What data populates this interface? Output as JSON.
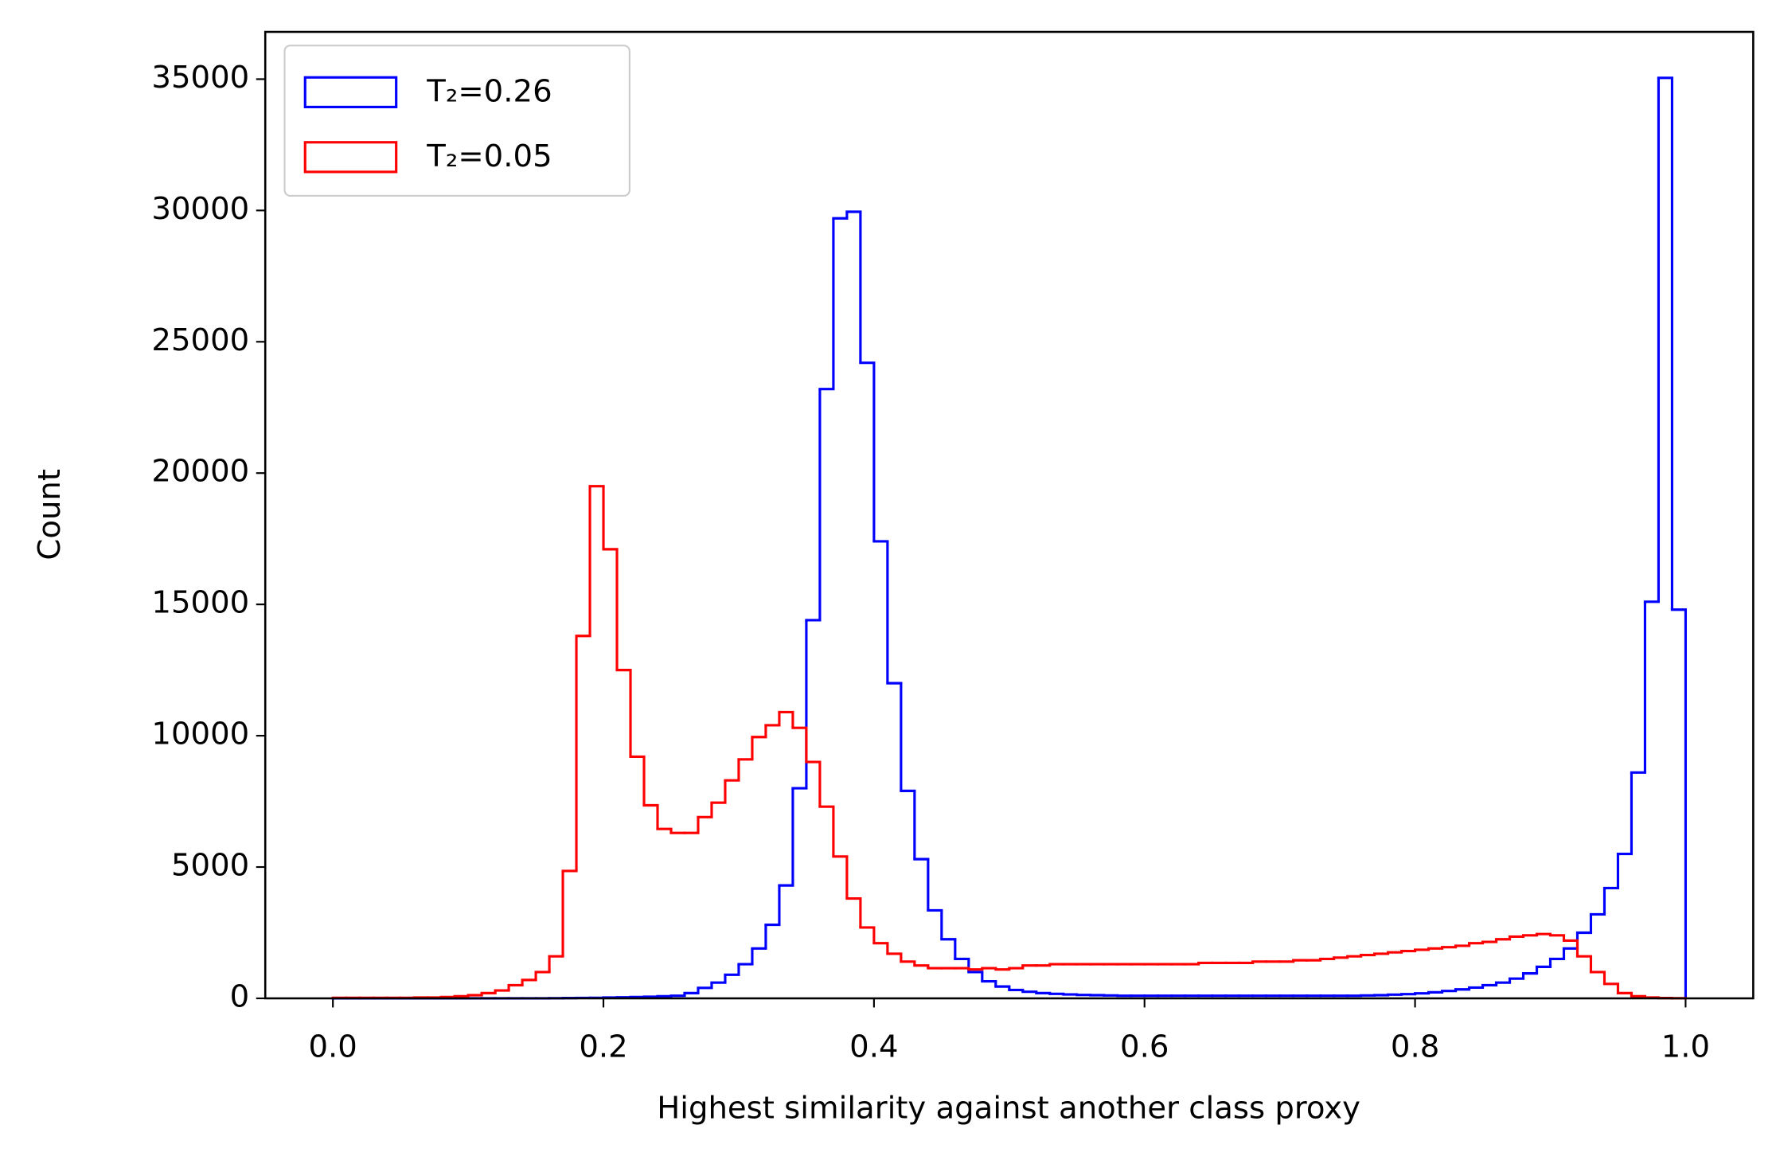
{
  "chart_data": {
    "type": "histogram",
    "histtype": "step",
    "xlabel": "Highest similarity against another class proxy",
    "ylabel": "Count",
    "bins": [
      0,
      0.01,
      0.02,
      0.03,
      0.04,
      0.05,
      0.06,
      0.07,
      0.08,
      0.09,
      0.1,
      0.11,
      0.12,
      0.13,
      0.14,
      0.15,
      0.16,
      0.17,
      0.18,
      0.19,
      0.2,
      0.21,
      0.22,
      0.23,
      0.24,
      0.25,
      0.26,
      0.27,
      0.28,
      0.29,
      0.3,
      0.31,
      0.32,
      0.33,
      0.34,
      0.35,
      0.36,
      0.37,
      0.38,
      0.39,
      0.4,
      0.41,
      0.42,
      0.43,
      0.44,
      0.45,
      0.46,
      0.47,
      0.48,
      0.49,
      0.5,
      0.51,
      0.52,
      0.53,
      0.54,
      0.55,
      0.56,
      0.57,
      0.58,
      0.59,
      0.6,
      0.61,
      0.62,
      0.63,
      0.64,
      0.65,
      0.66,
      0.67,
      0.68,
      0.69,
      0.7,
      0.71,
      0.72,
      0.73,
      0.74,
      0.75,
      0.76,
      0.77,
      0.78,
      0.79,
      0.8,
      0.81,
      0.82,
      0.83,
      0.84,
      0.85,
      0.86,
      0.87,
      0.88,
      0.89,
      0.9,
      0.91,
      0.92,
      0.93,
      0.94,
      0.95,
      0.96,
      0.97,
      0.98,
      0.99,
      1
    ],
    "series": [
      {
        "name": "T₂=0.26",
        "color": "#0000ff",
        "values": [
          0,
          0,
          0,
          0,
          0,
          0,
          0,
          0,
          0,
          0,
          0,
          0,
          0,
          0,
          0,
          0,
          5,
          10,
          15,
          20,
          30,
          40,
          50,
          60,
          80,
          100,
          200,
          400,
          600,
          900,
          1300,
          1900,
          2800,
          4300,
          8000,
          14400,
          23200,
          29700,
          29950,
          24200,
          17400,
          12000,
          7900,
          5300,
          3350,
          2250,
          1500,
          1000,
          650,
          450,
          320,
          250,
          200,
          170,
          150,
          130,
          120,
          110,
          100,
          100,
          100,
          100,
          100,
          100,
          100,
          100,
          100,
          100,
          100,
          100,
          100,
          100,
          100,
          100,
          100,
          100,
          110,
          120,
          140,
          160,
          190,
          230,
          280,
          340,
          410,
          500,
          600,
          750,
          950,
          1200,
          1500,
          1900,
          2500,
          3200,
          4200,
          5500,
          8600,
          15100,
          35050,
          14800
        ]
      },
      {
        "name": "T₂=0.05",
        "color": "#ff0000",
        "values": [
          20,
          20,
          20,
          20,
          20,
          20,
          30,
          30,
          50,
          80,
          120,
          200,
          300,
          500,
          700,
          1000,
          1600,
          4850,
          13800,
          19500,
          17100,
          12500,
          9200,
          7350,
          6450,
          6300,
          6300,
          6900,
          7450,
          8300,
          9100,
          9950,
          10400,
          10900,
          10300,
          9000,
          7300,
          5400,
          3800,
          2700,
          2100,
          1700,
          1400,
          1250,
          1150,
          1150,
          1150,
          1100,
          1150,
          1100,
          1150,
          1250,
          1250,
          1300,
          1300,
          1300,
          1300,
          1300,
          1300,
          1300,
          1300,
          1300,
          1300,
          1300,
          1350,
          1350,
          1350,
          1350,
          1400,
          1400,
          1400,
          1450,
          1450,
          1500,
          1550,
          1600,
          1650,
          1700,
          1750,
          1800,
          1850,
          1900,
          1950,
          2000,
          2100,
          2150,
          2250,
          2350,
          2400,
          2450,
          2400,
          2200,
          1600,
          1000,
          550,
          200,
          80,
          30,
          10,
          5
        ]
      }
    ],
    "xlim": [
      -0.05,
      1.05
    ],
    "ylim": [
      0,
      36800
    ],
    "xticks": [
      {
        "value": 0,
        "label": "0.0"
      },
      0.2,
      0.4,
      0.6,
      0.8,
      {
        "value": 1,
        "label": "1.0"
      }
    ],
    "yticks": [
      0,
      5000,
      10000,
      15000,
      20000,
      25000,
      30000,
      35000
    ],
    "legend": "upper left"
  }
}
